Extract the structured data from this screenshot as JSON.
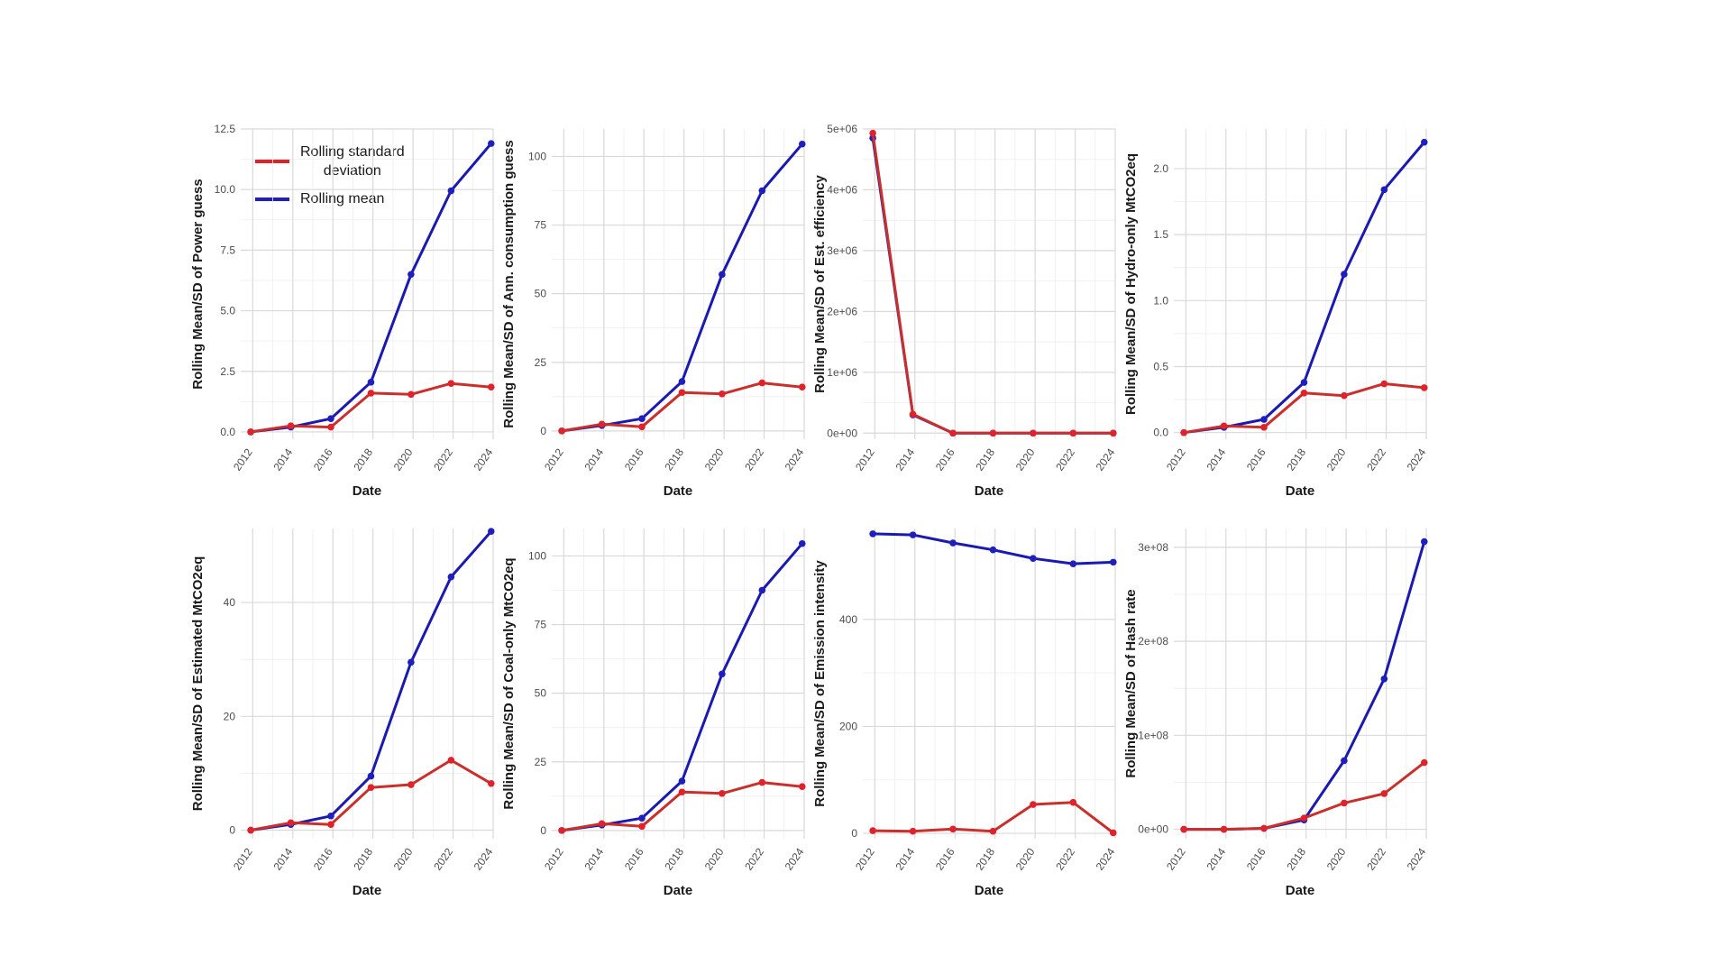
{
  "colors": {
    "sd": "#e0232b",
    "mean": "#1f1fc0",
    "sd_line": "#c9302c",
    "mean_line": "#1a1ab0"
  },
  "legend": {
    "sd_label_1": "Rolling standard",
    "sd_label_2": "deviation",
    "mean_label": "Rolling mean"
  },
  "chart_data": [
    {
      "type": "line",
      "xlabel": "Date",
      "ylabel": "Rolling Mean/SD of Power guess",
      "x_ticks": [
        "2012",
        "2014",
        "2016",
        "2018",
        "2020",
        "2022",
        "2024"
      ],
      "y_ticks": [
        "0.0",
        "2.5",
        "5.0",
        "7.5",
        "10.0",
        "12.5"
      ],
      "xlim": [
        2011.4,
        2024.0
      ],
      "ylim": [
        -0.3,
        12.5
      ],
      "x": [
        2011.9,
        2013.9,
        2015.9,
        2017.9,
        2019.9,
        2021.9,
        2023.9
      ],
      "series": [
        {
          "name": "Rolling mean",
          "values": [
            0.0,
            0.2,
            0.55,
            2.05,
            6.5,
            9.95,
            11.9
          ]
        },
        {
          "name": "Rolling standard deviation",
          "values": [
            0.0,
            0.25,
            0.2,
            1.6,
            1.55,
            2.0,
            1.85
          ]
        }
      ]
    },
    {
      "type": "line",
      "xlabel": "Date",
      "ylabel": "Rolling Mean/SD of Ann. consumption guess",
      "x_ticks": [
        "2012",
        "2014",
        "2016",
        "2018",
        "2020",
        "2022",
        "2024"
      ],
      "y_ticks": [
        "0",
        "25",
        "50",
        "75",
        "100"
      ],
      "xlim": [
        2011.4,
        2024.0
      ],
      "ylim": [
        -3,
        110
      ],
      "x": [
        2011.9,
        2013.9,
        2015.9,
        2017.9,
        2019.9,
        2021.9,
        2023.9
      ],
      "series": [
        {
          "name": "Rolling mean",
          "values": [
            0,
            2,
            4.5,
            18,
            57,
            87.5,
            104.5
          ]
        },
        {
          "name": "Rolling standard deviation",
          "values": [
            0,
            2.5,
            1.5,
            14,
            13.5,
            17.5,
            16
          ]
        }
      ]
    },
    {
      "type": "line",
      "xlabel": "Date",
      "ylabel": "Rolling Mean/SD of Est. efficiency",
      "x_ticks": [
        "2012",
        "2014",
        "2016",
        "2018",
        "2020",
        "2022",
        "2024"
      ],
      "y_ticks": [
        "0e+00",
        "1e+06",
        "2e+06",
        "3e+06",
        "4e+06",
        "5e+06"
      ],
      "xlim": [
        2011.4,
        2024.0
      ],
      "ylim": [
        -100000,
        5000000
      ],
      "x": [
        2011.9,
        2013.9,
        2015.9,
        2017.9,
        2019.9,
        2021.9,
        2023.9
      ],
      "series": [
        {
          "name": "Rolling mean",
          "values": [
            4850000,
            300000,
            0,
            0,
            0,
            0,
            0
          ]
        },
        {
          "name": "Rolling standard deviation",
          "values": [
            4930000,
            310000,
            0,
            0,
            0,
            0,
            0
          ]
        }
      ]
    },
    {
      "type": "line",
      "xlabel": "Date",
      "ylabel": "Rolling Mean/SD of Hydro-only MtCO2eq",
      "x_ticks": [
        "2012",
        "2014",
        "2016",
        "2018",
        "2020",
        "2022",
        "2024"
      ],
      "y_ticks": [
        "0.0",
        "0.5",
        "1.0",
        "1.5",
        "2.0"
      ],
      "xlim": [
        2011.4,
        2024.0
      ],
      "ylim": [
        -0.05,
        2.3
      ],
      "x": [
        2011.9,
        2013.9,
        2015.9,
        2017.9,
        2019.9,
        2021.9,
        2023.9
      ],
      "series": [
        {
          "name": "Rolling mean",
          "values": [
            0.0,
            0.04,
            0.1,
            0.38,
            1.2,
            1.84,
            2.2
          ]
        },
        {
          "name": "Rolling standard deviation",
          "values": [
            0.0,
            0.05,
            0.04,
            0.3,
            0.28,
            0.37,
            0.34
          ]
        }
      ]
    },
    {
      "type": "line",
      "xlabel": "Date",
      "ylabel": "Rolling Mean/SD of Estimated MtCO2eq",
      "x_ticks": [
        "2012",
        "2014",
        "2016",
        "2018",
        "2020",
        "2022",
        "2024"
      ],
      "y_ticks": [
        "0",
        "20",
        "40"
      ],
      "xlim": [
        2011.4,
        2024.0
      ],
      "ylim": [
        -1.5,
        53
      ],
      "x": [
        2011.9,
        2013.9,
        2015.9,
        2017.9,
        2019.9,
        2021.9,
        2023.9
      ],
      "series": [
        {
          "name": "Rolling mean",
          "values": [
            0,
            1,
            2.5,
            9.5,
            29.5,
            44.5,
            52.5
          ]
        },
        {
          "name": "Rolling standard deviation",
          "values": [
            0,
            1.3,
            1,
            7.5,
            8,
            12.3,
            8.2
          ]
        }
      ]
    },
    {
      "type": "line",
      "xlabel": "Date",
      "ylabel": "Rolling Mean/SD of Coal-only MtCO2eq",
      "x_ticks": [
        "2012",
        "2014",
        "2016",
        "2018",
        "2020",
        "2022",
        "2024"
      ],
      "y_ticks": [
        "0",
        "25",
        "50",
        "75",
        "100"
      ],
      "xlim": [
        2011.4,
        2024.0
      ],
      "ylim": [
        -3,
        110
      ],
      "x": [
        2011.9,
        2013.9,
        2015.9,
        2017.9,
        2019.9,
        2021.9,
        2023.9
      ],
      "series": [
        {
          "name": "Rolling mean",
          "values": [
            0,
            2,
            4.5,
            18,
            57,
            87.5,
            104.5
          ]
        },
        {
          "name": "Rolling standard deviation",
          "values": [
            0,
            2.5,
            1.5,
            14,
            13.5,
            17.5,
            16
          ]
        }
      ]
    },
    {
      "type": "line",
      "xlabel": "Date",
      "ylabel": "Rolling Mean/SD of Emission intensity",
      "x_ticks": [
        "2012",
        "2014",
        "2016",
        "2018",
        "2020",
        "2022",
        "2024"
      ],
      "y_ticks": [
        "0",
        "200",
        "400"
      ],
      "xlim": [
        2011.4,
        2024.0
      ],
      "ylim": [
        -10,
        570
      ],
      "x": [
        2011.9,
        2013.9,
        2015.9,
        2017.9,
        2019.9,
        2021.9,
        2023.9
      ],
      "series": [
        {
          "name": "Rolling mean",
          "values": [
            560,
            558,
            543,
            530,
            514,
            504,
            507
          ]
        },
        {
          "name": "Rolling standard deviation",
          "values": [
            5,
            4,
            8,
            4,
            54,
            58,
            1
          ]
        }
      ]
    },
    {
      "type": "line",
      "xlabel": "Date",
      "ylabel": "Rolling Mean/SD of Hash rate",
      "x_ticks": [
        "2012",
        "2014",
        "2016",
        "2018",
        "2020",
        "2022",
        "2024"
      ],
      "y_ticks": [
        "0e+00",
        "1e+08",
        "2e+08",
        "3e+08"
      ],
      "xlim": [
        2011.4,
        2024.0
      ],
      "ylim": [
        -10000000,
        320000000
      ],
      "x": [
        2011.9,
        2013.9,
        2015.9,
        2017.9,
        2019.9,
        2021.9,
        2023.9
      ],
      "series": [
        {
          "name": "Rolling mean",
          "values": [
            0,
            0,
            1000000,
            10000000,
            73000000,
            160000000,
            306000000
          ]
        },
        {
          "name": "Rolling standard deviation",
          "values": [
            0,
            0,
            1000000,
            12000000,
            28000000,
            38000000,
            71000000
          ]
        }
      ]
    }
  ]
}
